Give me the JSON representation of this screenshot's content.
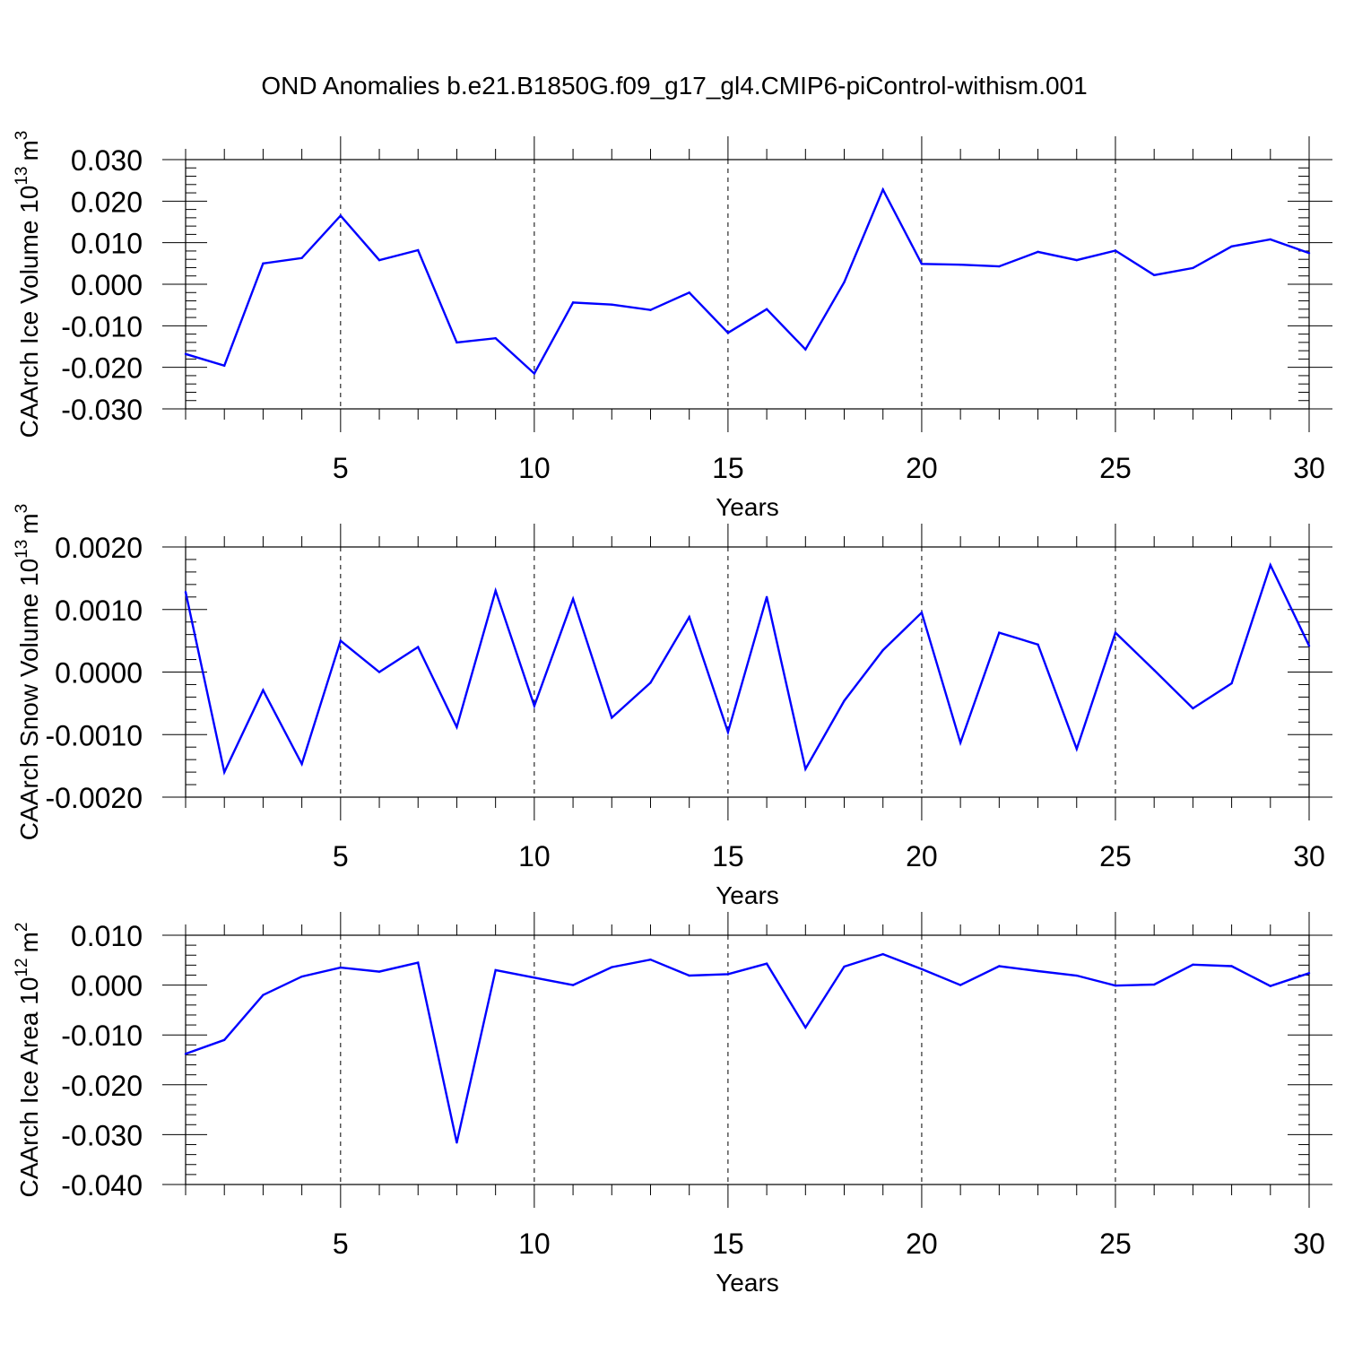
{
  "title": "OND Anomalies b.e21.B1850G.f09_g17_gl4.CMIP6-piControl-withism.001",
  "chart_data": [
    {
      "type": "line",
      "xlabel": "Years",
      "ylabel": "CAArch Ice Volume 10",
      "ylabel_exp": "13",
      "ylabel_unit": "m",
      "ylabel_unit_exp": "3",
      "xlim": [
        1,
        30
      ],
      "ylim": [
        -0.03,
        0.03
      ],
      "xticks": [
        5,
        10,
        15,
        20,
        25,
        30
      ],
      "yticks": [
        -0.03,
        -0.02,
        -0.01,
        0.0,
        0.01,
        0.02,
        0.03
      ],
      "ytick_labels": [
        "-0.030",
        "-0.020",
        "-0.010",
        "0.000",
        "0.010",
        "0.020",
        "0.030"
      ],
      "grid": "dashed vertical at major x ticks",
      "color": "#0000ff",
      "x": [
        1,
        2,
        3,
        4,
        5,
        6,
        7,
        8,
        9,
        10,
        11,
        12,
        13,
        14,
        15,
        16,
        17,
        18,
        19,
        20,
        21,
        22,
        23,
        24,
        25,
        26,
        27,
        28,
        29,
        30
      ],
      "values": [
        -0.0168,
        -0.0196,
        0.005,
        0.0063,
        0.0165,
        0.0058,
        0.0082,
        -0.014,
        -0.013,
        -0.0215,
        -0.0044,
        -0.0049,
        -0.0062,
        -0.002,
        -0.0117,
        -0.006,
        -0.0157,
        0.0005,
        0.0228,
        0.0049,
        0.0047,
        0.0043,
        0.0078,
        0.0058,
        0.0081,
        0.0022,
        0.0039,
        0.0091,
        0.0108,
        0.0075
      ]
    },
    {
      "type": "line",
      "xlabel": "Years",
      "ylabel": "CAArch Snow Volume 10",
      "ylabel_exp": "13",
      "ylabel_unit": "m",
      "ylabel_unit_exp": "3",
      "xlim": [
        1,
        30
      ],
      "ylim": [
        -0.002,
        0.002
      ],
      "xticks": [
        5,
        10,
        15,
        20,
        25,
        30
      ],
      "yticks": [
        -0.002,
        -0.001,
        0.0,
        0.001,
        0.002
      ],
      "ytick_labels": [
        "-0.0020",
        "-0.0010",
        "0.0000",
        "0.0010",
        "0.0020"
      ],
      "grid": "dashed vertical at major x ticks",
      "color": "#0000ff",
      "x": [
        1,
        2,
        3,
        4,
        5,
        6,
        7,
        8,
        9,
        10,
        11,
        12,
        13,
        14,
        15,
        16,
        17,
        18,
        19,
        20,
        21,
        22,
        23,
        24,
        25,
        26,
        27,
        28,
        29,
        30
      ],
      "values": [
        0.00128,
        -0.0016,
        -0.00029,
        -0.00147,
        0.0005,
        0.0,
        0.0004,
        -0.00088,
        0.0013,
        -0.00054,
        0.00117,
        -0.00073,
        -0.00017,
        0.00088,
        -0.00096,
        0.0012,
        -0.00155,
        -0.00046,
        0.00035,
        0.00095,
        -0.00113,
        0.00063,
        0.00044,
        -0.00123,
        0.00063,
        3e-05,
        -0.00058,
        -0.00018,
        0.00171,
        0.00042
      ]
    },
    {
      "type": "line",
      "xlabel": "Years",
      "ylabel": "CAArch Ice Area 10",
      "ylabel_exp": "12",
      "ylabel_unit": "m",
      "ylabel_unit_exp": "2",
      "xlim": [
        1,
        30
      ],
      "ylim": [
        -0.04,
        0.01
      ],
      "xticks": [
        5,
        10,
        15,
        20,
        25,
        30
      ],
      "yticks": [
        -0.04,
        -0.03,
        -0.02,
        -0.01,
        0.0,
        0.01
      ],
      "ytick_labels": [
        "-0.040",
        "-0.030",
        "-0.020",
        "-0.010",
        "0.000",
        "0.010"
      ],
      "grid": "dashed vertical at major x ticks",
      "color": "#0000ff",
      "x": [
        1,
        2,
        3,
        4,
        5,
        6,
        7,
        8,
        9,
        10,
        11,
        12,
        13,
        14,
        15,
        16,
        17,
        18,
        19,
        20,
        21,
        22,
        23,
        24,
        25,
        26,
        27,
        28,
        29,
        30
      ],
      "values": [
        -0.0138,
        -0.011,
        -0.002,
        0.0017,
        0.0035,
        0.0027,
        0.0045,
        -0.0316,
        0.003,
        0.0015,
        0.0,
        0.0036,
        0.0051,
        0.0019,
        0.0022,
        0.0043,
        -0.0085,
        0.0037,
        0.0062,
        0.0032,
        0.0,
        0.0038,
        0.0028,
        0.0019,
        -0.0001,
        0.0001,
        0.0041,
        0.0038,
        -0.0002,
        0.0024
      ]
    }
  ]
}
